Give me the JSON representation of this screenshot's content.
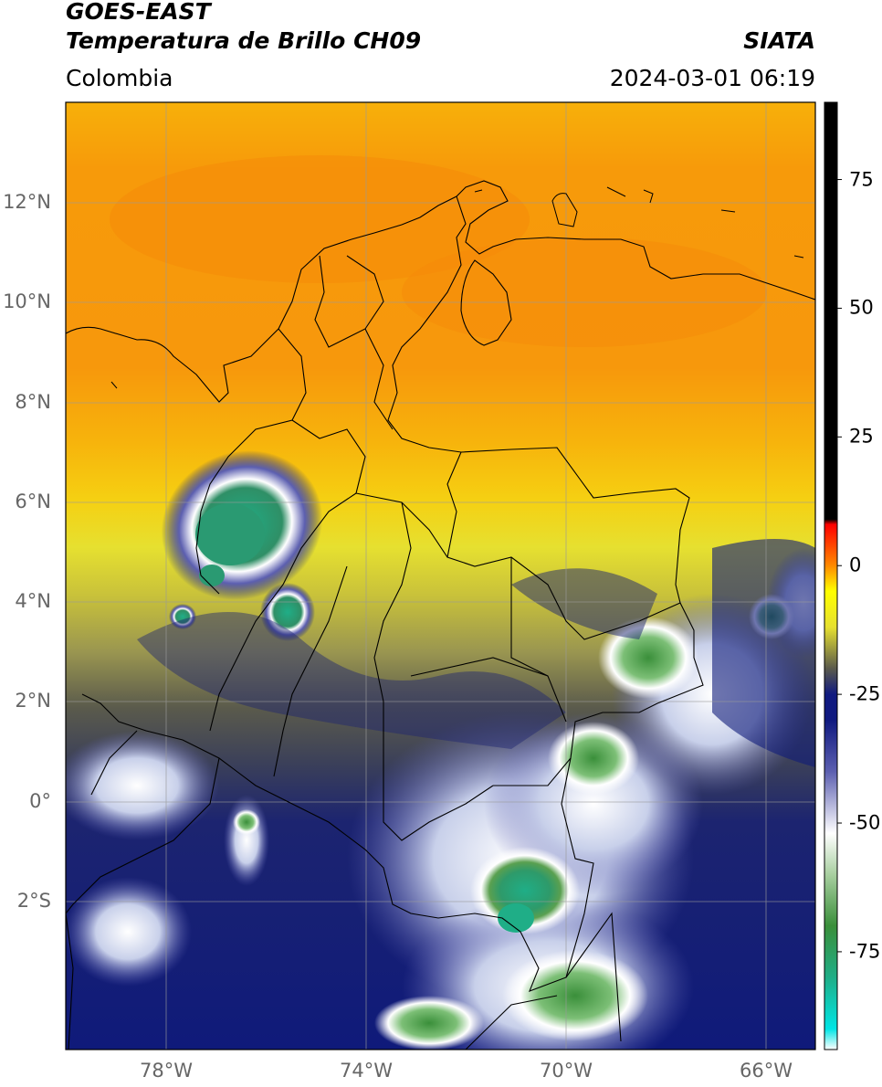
{
  "header": {
    "satellite": "GOES-EAST",
    "product": "Temperatura de Brillo CH09",
    "agency": "SIATA",
    "region": "Colombia",
    "datetime": "2024-03-01 06:19"
  },
  "map": {
    "lat_labels": [
      "12°N",
      "10°N",
      "8°N",
      "6°N",
      "4°N",
      "2°N",
      "0°",
      "2°S"
    ],
    "lon_labels": [
      "78°W",
      "74°W",
      "70°W",
      "66°W"
    ],
    "extent": {
      "lon_min": -80.0,
      "lon_max": -65.0,
      "lat_min": -5.0,
      "lat_max": 14.0
    },
    "gridlines": true
  },
  "colorbar": {
    "ticks": [
      "75",
      "50",
      "25",
      "0",
      "-25",
      "-50",
      "-75"
    ],
    "tick_values": [
      75,
      50,
      25,
      0,
      -25,
      -50,
      -75
    ],
    "range": [
      -94,
      90
    ],
    "stops": [
      {
        "v": -94,
        "c": "#ffffff"
      },
      {
        "v": -90,
        "c": "#00e5e5"
      },
      {
        "v": -80,
        "c": "#1fae87"
      },
      {
        "v": -70,
        "c": "#3a8f3a"
      },
      {
        "v": -60,
        "c": "#a8cfa0"
      },
      {
        "v": -52,
        "c": "#ffffff"
      },
      {
        "v": -40,
        "c": "#5c5fb0"
      },
      {
        "v": -30,
        "c": "#101a80"
      },
      {
        "v": -25,
        "c": "#101a80"
      },
      {
        "v": -20,
        "c": "#5a5a4c"
      },
      {
        "v": -12,
        "c": "#e6e030"
      },
      {
        "v": -5,
        "c": "#ffff00"
      },
      {
        "v": 0,
        "c": "#ff8a00"
      },
      {
        "v": 8,
        "c": "#ff0000"
      },
      {
        "v": 9,
        "c": "#000000"
      },
      {
        "v": 90,
        "c": "#000000"
      }
    ]
  },
  "colors": {
    "warm": "#f79c0a",
    "mid_yellow": "#e8d21a",
    "cold_blue": "#0f1a7a",
    "cloud_white": "#ffffff",
    "cloud_green": "#3a8f3a",
    "cloud_teal": "#1fae87"
  }
}
